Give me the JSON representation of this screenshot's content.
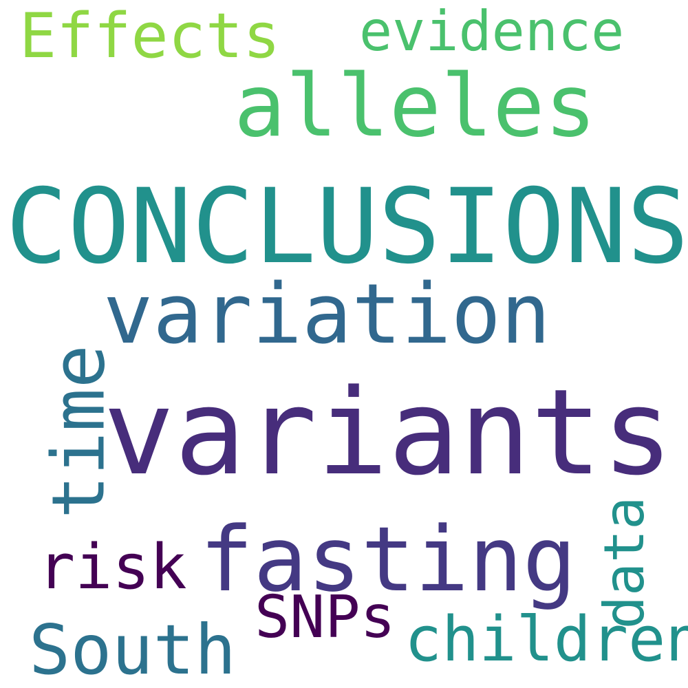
{
  "words": {
    "effects": {
      "text": "Effects",
      "color": "#8fd744"
    },
    "evidence": {
      "text": "evidence",
      "color": "#4ac16d"
    },
    "alleles": {
      "text": "alleles",
      "color": "#4ac16d"
    },
    "conclusions": {
      "text": "CONCLUSIONS",
      "color": "#21918c"
    },
    "variation": {
      "text": "variation",
      "color": "#31688e"
    },
    "variants": {
      "text": "variants",
      "color": "#472d7b"
    },
    "time": {
      "text": "time",
      "color": "#2c728e"
    },
    "fasting": {
      "text": "fasting",
      "color": "#443983"
    },
    "data": {
      "text": "data",
      "color": "#21918c"
    },
    "risk": {
      "text": "risk",
      "color": "#440154"
    },
    "snps": {
      "text": "SNPs",
      "color": "#440154"
    },
    "south": {
      "text": "South",
      "color": "#2c728e"
    },
    "children": {
      "text": "children",
      "color": "#21918c"
    }
  }
}
